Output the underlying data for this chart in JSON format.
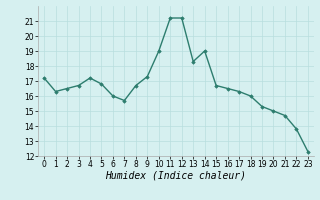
{
  "x": [
    0,
    1,
    2,
    3,
    4,
    5,
    6,
    7,
    8,
    9,
    10,
    11,
    12,
    13,
    14,
    15,
    16,
    17,
    18,
    19,
    20,
    21,
    22,
    23
  ],
  "y": [
    17.2,
    16.3,
    16.5,
    16.7,
    17.2,
    16.8,
    16.0,
    15.7,
    16.7,
    17.3,
    19.0,
    21.2,
    21.2,
    18.3,
    19.0,
    16.7,
    16.5,
    16.3,
    16.0,
    15.3,
    15.0,
    14.7,
    13.8,
    12.3
  ],
  "line_color": "#2d7d6e",
  "marker": "D",
  "marker_size": 1.8,
  "bg_color": "#d6f0f0",
  "grid_color": "#b8dede",
  "xlabel": "Humidex (Indice chaleur)",
  "ylim": [
    12,
    22
  ],
  "xlim": [
    -0.5,
    23.5
  ],
  "yticks": [
    12,
    13,
    14,
    15,
    16,
    17,
    18,
    19,
    20,
    21
  ],
  "xticks": [
    0,
    1,
    2,
    3,
    4,
    5,
    6,
    7,
    8,
    9,
    10,
    11,
    12,
    13,
    14,
    15,
    16,
    17,
    18,
    19,
    20,
    21,
    22,
    23
  ],
  "xlabel_fontsize": 7,
  "tick_fontsize": 5.5,
  "line_width": 1.0,
  "spine_color": "#aaaaaa"
}
